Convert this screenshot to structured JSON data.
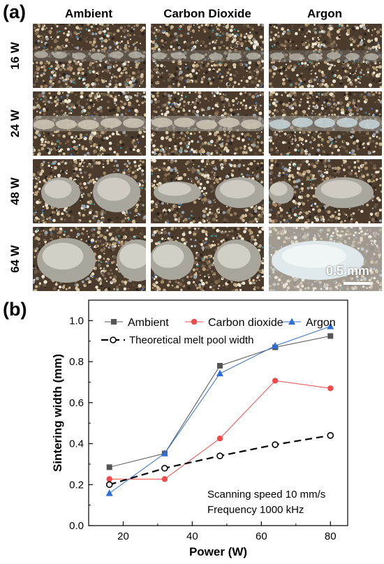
{
  "panel_a": {
    "label": "(a)",
    "columns": [
      "Ambient",
      "Carbon Dioxide",
      "Argon"
    ],
    "rows": [
      "16 W",
      "24 W",
      "48 W",
      "64 W"
    ],
    "scale_bar": "0.5 mm"
  },
  "panel_b": {
    "label": "(b)"
  },
  "chart_data": {
    "type": "line",
    "xlabel": "Power (W)",
    "ylabel": "Sintering width (mm)",
    "xlim": [
      10,
      85
    ],
    "ylim": [
      0.0,
      1.1
    ],
    "xticks": [
      20,
      40,
      60,
      80
    ],
    "yticks": [
      0.0,
      0.2,
      0.4,
      0.6,
      0.8,
      1.0
    ],
    "x": [
      16,
      32,
      48,
      64,
      80
    ],
    "series": [
      {
        "name": "Ambient",
        "values": [
          0.285,
          0.352,
          0.78,
          0.87,
          0.925
        ],
        "color": "#555555",
        "marker": "square"
      },
      {
        "name": "Carbon dioxide",
        "values": [
          0.227,
          0.227,
          0.425,
          0.707,
          0.67
        ],
        "color": "#f04a4a",
        "marker": "circle"
      },
      {
        "name": "Argon",
        "values": [
          0.158,
          0.352,
          0.742,
          0.877,
          0.972
        ],
        "color": "#2a6fd6",
        "marker": "triangle"
      },
      {
        "name": "Theoretical melt pool width",
        "values": [
          0.2,
          0.28,
          0.34,
          0.395,
          0.44
        ],
        "color": "#000000",
        "marker": "open-circle",
        "dashed": true
      }
    ],
    "annotations": [
      "Scanning speed 10 mm/s",
      "Frequency 1000 kHz"
    ],
    "legend_position": "top",
    "grid": false
  }
}
